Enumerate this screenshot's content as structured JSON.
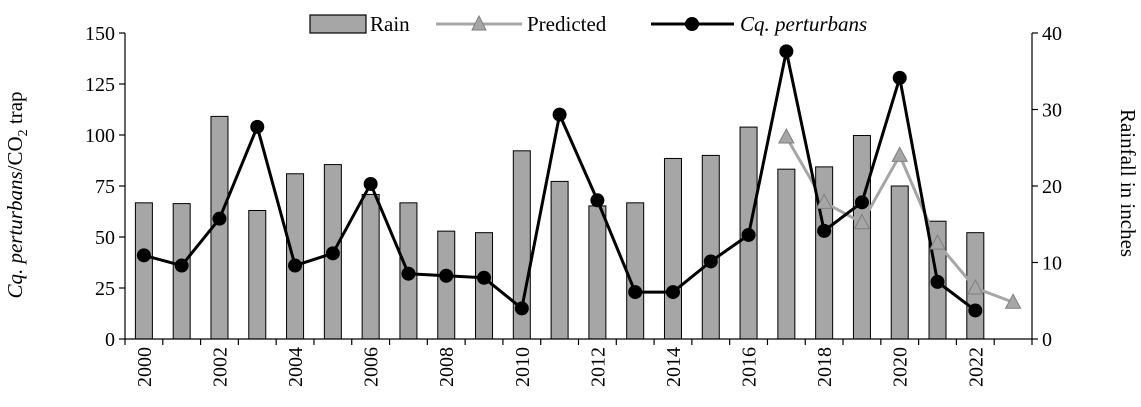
{
  "chart_data": {
    "type": "bar+line",
    "x": [
      2000,
      2001,
      2002,
      2003,
      2004,
      2005,
      2006,
      2007,
      2008,
      2009,
      2010,
      2011,
      2012,
      2013,
      2014,
      2015,
      2016,
      2017,
      2018,
      2019,
      2020,
      2021,
      2022,
      2023
    ],
    "x_tick_labels": [
      "2000",
      "2002",
      "2004",
      "2006",
      "2008",
      "2010",
      "2012",
      "2014",
      "2016",
      "2018",
      "2020",
      "2022"
    ],
    "left_axis": {
      "label_italic": "Cq. perturbans",
      "label_plain": "/CO",
      "label_sub": "2",
      "label_tail": " trap",
      "ylim": [
        0,
        150
      ],
      "tick_labels": [
        "0",
        "25",
        "50",
        "75",
        "100",
        "125",
        "150"
      ]
    },
    "right_axis": {
      "label": "Rainfall in inches",
      "ylim": [
        0,
        40
      ],
      "tick_labels": [
        "0",
        "10",
        "20",
        "30",
        "40"
      ]
    },
    "legend": {
      "placement": "top-center",
      "rain": "Rain",
      "predicted": "Predicted",
      "perturbans": "Cq. perturbans"
    },
    "series": [
      {
        "name": "Rain",
        "kind": "bar",
        "axis": "right",
        "color": "#a6a6a6",
        "values": [
          17.8,
          17.7,
          29.1,
          16.8,
          21.6,
          22.8,
          18.9,
          17.8,
          14.1,
          13.9,
          24.6,
          20.6,
          17.4,
          17.8,
          23.6,
          24.0,
          27.7,
          22.2,
          22.5,
          26.6,
          20.0,
          15.4,
          13.9,
          null
        ]
      },
      {
        "name": "Predicted",
        "kind": "line",
        "axis": "left",
        "color": "#a6a6a6",
        "x": [
          2017,
          2018,
          2019,
          2020,
          2021,
          2022,
          2023
        ],
        "values": [
          99,
          67,
          57,
          90,
          47,
          25,
          18
        ]
      },
      {
        "name": "Cq. perturbans",
        "kind": "line",
        "axis": "left",
        "color": "#000000",
        "x": [
          2000,
          2001,
          2002,
          2003,
          2004,
          2005,
          2006,
          2007,
          2008,
          2009,
          2010,
          2011,
          2012,
          2013,
          2014,
          2015,
          2016,
          2017,
          2018,
          2019,
          2020,
          2021,
          2022
        ],
        "values": [
          41,
          36,
          59,
          104,
          36,
          42,
          76,
          32,
          31,
          30,
          15,
          110,
          68,
          23,
          23,
          38,
          51,
          141,
          53,
          67,
          128,
          28,
          14
        ]
      }
    ]
  }
}
